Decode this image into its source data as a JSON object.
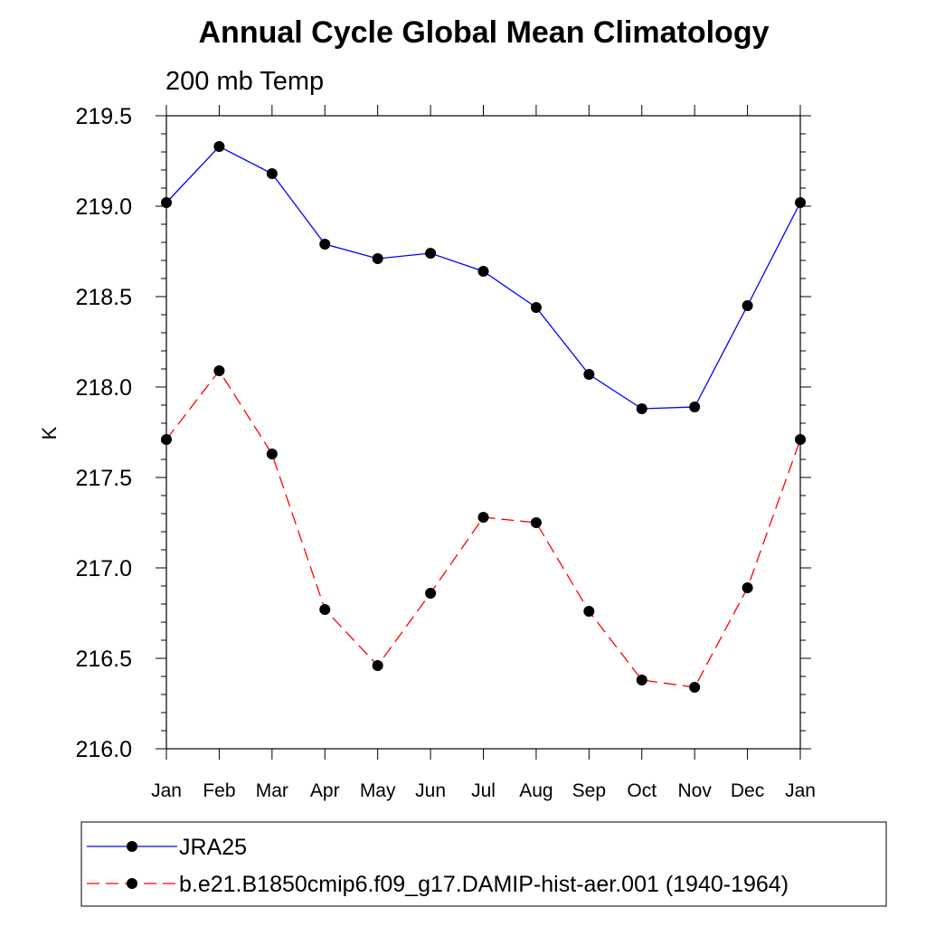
{
  "chart_data": {
    "type": "line",
    "title": "Annual Cycle Global Mean Climatology",
    "subtitle": "200 mb Temp",
    "xlabel": "",
    "ylabel": "K",
    "ylim": [
      216.0,
      219.5
    ],
    "yticks": [
      "216.0",
      "216.5",
      "217.0",
      "217.5",
      "218.0",
      "218.5",
      "219.0",
      "219.5"
    ],
    "categories": [
      "Jan",
      "Feb",
      "Mar",
      "Apr",
      "May",
      "Jun",
      "Jul",
      "Aug",
      "Sep",
      "Oct",
      "Nov",
      "Dec",
      "Jan"
    ],
    "grid": false,
    "legend_position": "bottom",
    "series": [
      {
        "name": "JRA25",
        "color": "#0000ff",
        "style": "solid",
        "marker": "circle",
        "values": [
          219.02,
          219.33,
          219.18,
          218.79,
          218.71,
          218.74,
          218.64,
          218.44,
          218.07,
          217.88,
          217.89,
          218.45,
          219.02
        ]
      },
      {
        "name": "b.e21.B1850cmip6.f09_g17.DAMIP-hist-aer.001 (1940-1964)",
        "color": "#ff0000",
        "style": "dashed",
        "marker": "circle",
        "values": [
          217.71,
          218.09,
          217.63,
          216.77,
          216.46,
          216.86,
          217.28,
          217.25,
          216.76,
          216.38,
          216.34,
          216.89,
          217.71
        ]
      }
    ]
  }
}
